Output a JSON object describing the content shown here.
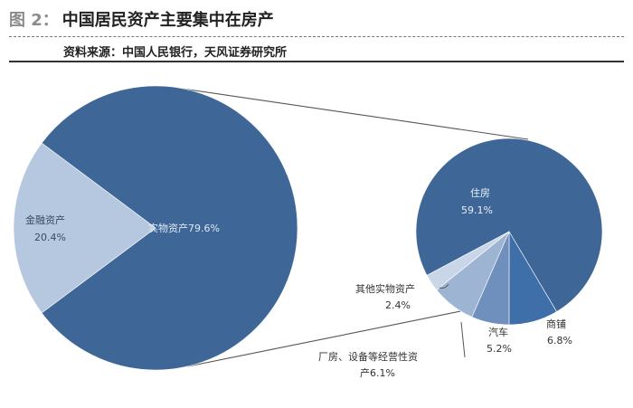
{
  "header": {
    "figure_label": "图 2：",
    "title": "中国居民资产主要集中在房产",
    "source": "资料来源：中国人民银行，天风证券研究所"
  },
  "colors": {
    "dark_blue": "#3e6797",
    "light_blue": "#b5c8e0",
    "mid_blue": "#9db5d3",
    "steel_blue": "#6f8fbc",
    "pale_blue": "#c8d6e8",
    "connector": "#555555"
  },
  "chart_data": [
    {
      "type": "pie",
      "title": "",
      "slices": [
        {
          "name": "实物资产",
          "value": 79.6,
          "label": "实物资产79.6%"
        },
        {
          "name": "金融资产",
          "value": 20.4,
          "label_name": "金融资产",
          "label_value": "20.4%"
        }
      ]
    },
    {
      "type": "pie",
      "title": "",
      "slices": [
        {
          "name": "住房",
          "value": 59.1,
          "label_name": "住房",
          "label_value": "59.1%"
        },
        {
          "name": "商铺",
          "value": 6.8,
          "label_name": "商铺",
          "label_value": "6.8%"
        },
        {
          "name": "汽车",
          "value": 5.2,
          "label_name": "汽车",
          "label_value": "5.2%"
        },
        {
          "name": "厂房、设备等经营性资产",
          "value": 6.1,
          "label_line1": "厂房、设备等经营性资",
          "label_line2": "产6.1%"
        },
        {
          "name": "其他实物资产",
          "value": 2.4,
          "label_name": "其他实物资产",
          "label_value": "2.4%"
        }
      ]
    }
  ]
}
